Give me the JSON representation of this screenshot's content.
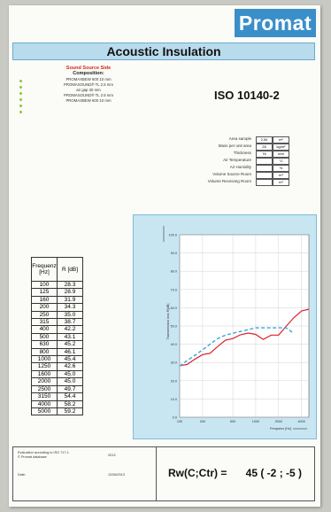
{
  "header": {
    "logo_text": "Promat",
    "title": "Acoustic Insulation",
    "standard": "ISO 10140-2"
  },
  "composition": {
    "heading": "Sound Source Side",
    "subheading": "Composition:",
    "lines": [
      "PROMAXBEW 600 10 mm",
      "PROMASOUND® TL 2.5 mm",
      "air gap 30 mm",
      "PROMASOUND® TL 2.5 mm",
      "PROMAXBEW 600 10 mm"
    ]
  },
  "properties": [
    {
      "label": "Area sample",
      "value": "2.00",
      "unit": "m²"
    },
    {
      "label": "Mass per unit area",
      "value": "28",
      "unit": "kg/m²"
    },
    {
      "label": "Thickness",
      "value": "76",
      "unit": "mm"
    },
    {
      "label": "Air Temperature",
      "value": "",
      "unit": "°C"
    },
    {
      "label": "Air Humidity",
      "value": "",
      "unit": "%"
    },
    {
      "label": "Volume Source Room",
      "value": "",
      "unit": "m³"
    },
    {
      "label": "Volume Receiving Room",
      "value": "",
      "unit": "m³"
    }
  ],
  "table": {
    "head_freq": "Frequenz [Hz]",
    "head_r": "R [dB]",
    "rows": [
      [
        "100",
        "28.3"
      ],
      [
        "125",
        "28.9"
      ],
      [
        "160",
        "31.9"
      ],
      [
        "200",
        "34.3"
      ],
      [
        "250",
        "35.0"
      ],
      [
        "315",
        "38.7"
      ],
      [
        "400",
        "42.2"
      ],
      [
        "500",
        "43.1"
      ],
      [
        "630",
        "45.2"
      ],
      [
        "800",
        "46.1"
      ],
      [
        "1000",
        "45.4"
      ],
      [
        "1250",
        "42.6"
      ],
      [
        "1600",
        "45.0"
      ],
      [
        "2000",
        "45.0"
      ],
      [
        "2500",
        "49.7"
      ],
      [
        "3150",
        "54.4"
      ],
      [
        "4000",
        "58.2"
      ],
      [
        "5000",
        "59.2"
      ]
    ]
  },
  "chart_data": {
    "type": "line",
    "ylabel": "Transmission loss R[dB]",
    "xlabel": "Frequenz [Hz]",
    "ylim": [
      0,
      100
    ],
    "yticks": [
      "0.0",
      "10.0",
      "20.0",
      "30.0",
      "40.0",
      "50.0",
      "60.0",
      "70.0",
      "80.0",
      "90.0",
      "100.0"
    ],
    "xticks": [
      "100",
      "200",
      "500",
      "1000",
      "2000",
      "4000"
    ],
    "x": [
      100,
      125,
      160,
      200,
      250,
      315,
      400,
      500,
      630,
      800,
      1000,
      1250,
      1600,
      2000,
      2500,
      3150,
      4000,
      5000
    ],
    "series": [
      {
        "values": [
          28.3,
          28.9,
          31.9,
          34.3,
          35.0,
          38.7,
          42.2,
          43.1,
          45.2,
          46.1,
          45.4,
          42.6,
          45.0,
          45.0,
          49.7,
          54.4,
          58.2,
          59.2
        ],
        "color": "#d8232a",
        "style": "solid"
      },
      {
        "values": [
          28.0,
          31.0,
          34.0,
          37.0,
          40.0,
          43.0,
          45.0,
          46.0,
          47.0,
          48.0,
          49.0,
          49.0,
          49.0,
          49.0,
          49.0,
          46.0,
          null,
          null
        ],
        "color": "#3aa6dc",
        "style": "dashed"
      }
    ]
  },
  "footer": {
    "eval_line1": "Evaluation according to ISO 717-1",
    "eval_line2": "© Promat database",
    "eval_right": "2013",
    "date_label": "Date:",
    "date_value": "12/06/2013",
    "rw_label": "Rw(C;Ctr) =",
    "rw_value": "45 ( -2 ; -5 )"
  },
  "colors": {
    "accent": "#3a8fc9",
    "measured": "#d8232a",
    "reference": "#3aa6dc"
  }
}
